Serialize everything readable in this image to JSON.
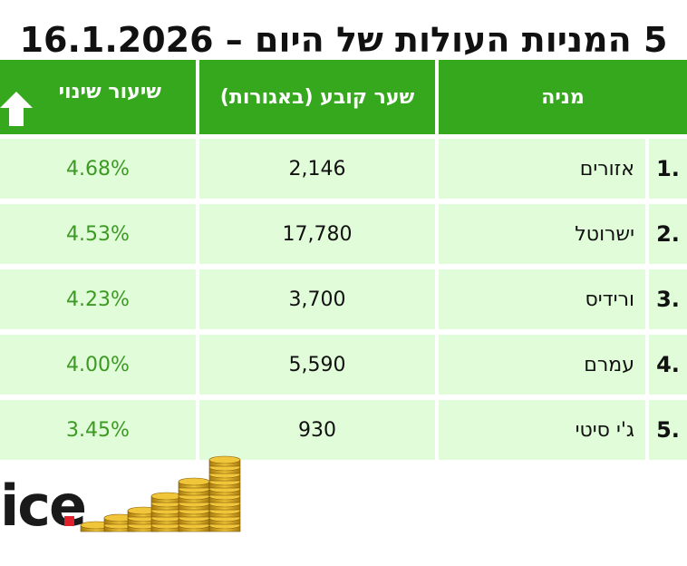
{
  "title": "5 המניות העולות של היום – 16.1.2026",
  "table": {
    "headers": {
      "stock": "מניה",
      "price": "שער קובע (באגורות)",
      "change": "שיעור שינוי"
    },
    "rows": [
      {
        "rank": "1.",
        "stock": "אזורים",
        "price": "2,146",
        "change": "4.68%"
      },
      {
        "rank": "2.",
        "stock": "ישרוטל",
        "price": "17,780",
        "change": "4.53%"
      },
      {
        "rank": "3.",
        "stock": "ורידיס",
        "price": "3,700",
        "change": "4.23%"
      },
      {
        "rank": "4.",
        "stock": "עמרם",
        "price": "5,590",
        "change": "4.00%"
      },
      {
        "rank": "5.",
        "stock": "ג'י סיטי",
        "price": "930",
        "change": "3.45%"
      }
    ]
  },
  "logo": {
    "text": "ice"
  },
  "colors": {
    "header_green": "#35a81e",
    "row_green": "#e1fcd9",
    "change_green": "#3c9a23",
    "logo_red": "#e0202a"
  },
  "icons": {
    "header_change_icon": "arrow-up-icon",
    "decor": "coin-stacks-icon"
  }
}
